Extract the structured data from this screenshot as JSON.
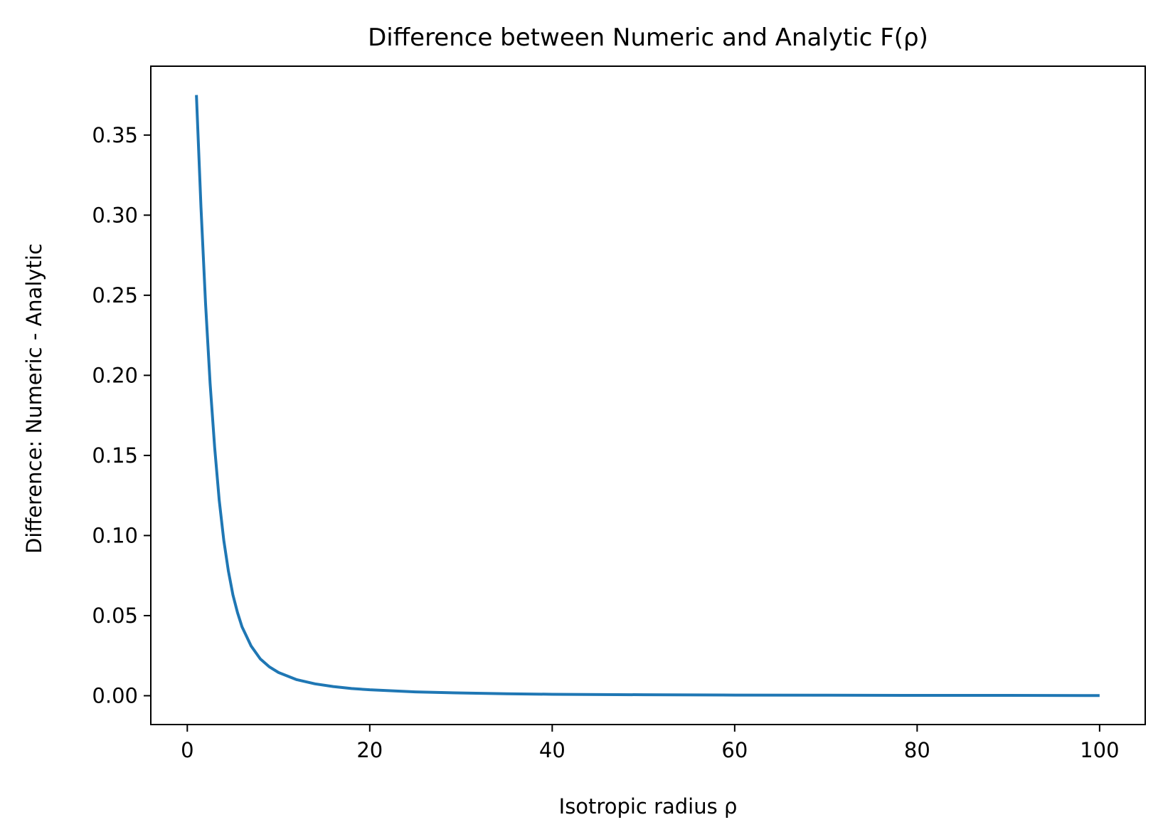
{
  "chart_data": {
    "type": "line",
    "title": "Difference between Numeric and Analytic F(ρ)",
    "xlabel": "Isotropic radius ρ",
    "ylabel": "Difference: Numeric - Analytic",
    "xlim": [
      -4,
      105
    ],
    "ylim": [
      -0.018,
      0.393
    ],
    "xticks": [
      0,
      20,
      40,
      60,
      80,
      100
    ],
    "xtick_labels": [
      "0",
      "20",
      "40",
      "60",
      "80",
      "100"
    ],
    "yticks": [
      0.0,
      0.05,
      0.1,
      0.15,
      0.2,
      0.25,
      0.3,
      0.35
    ],
    "ytick_labels": [
      "0.00",
      "0.05",
      "0.10",
      "0.15",
      "0.20",
      "0.25",
      "0.30",
      "0.35"
    ],
    "grid": false,
    "series": [
      {
        "color": "#1f77b4",
        "x": [
          1,
          1.5,
          2,
          2.5,
          3,
          3.5,
          4,
          4.5,
          5,
          5.5,
          6,
          7,
          8,
          9,
          10,
          12,
          14,
          16,
          18,
          20,
          25,
          30,
          35,
          40,
          50,
          60,
          70,
          80,
          90,
          100
        ],
        "y": [
          0.375,
          0.305,
          0.245,
          0.195,
          0.155,
          0.122,
          0.097,
          0.078,
          0.063,
          0.052,
          0.043,
          0.031,
          0.023,
          0.018,
          0.0145,
          0.01,
          0.0074,
          0.0057,
          0.0045,
          0.0037,
          0.0024,
          0.0017,
          0.0012,
          0.0009,
          0.0006,
          0.0004,
          0.0003,
          0.0002,
          0.0002,
          0.0001
        ]
      }
    ]
  }
}
